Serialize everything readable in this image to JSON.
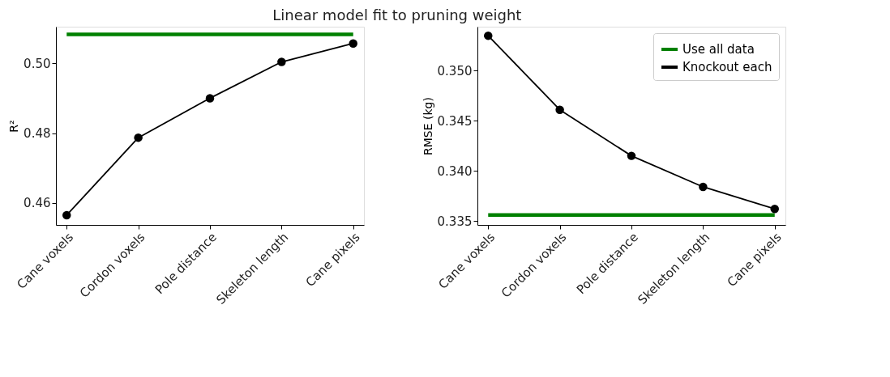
{
  "chart_data": [
    {
      "type": "line",
      "title": "Linear model fit to pruning weight",
      "ylabel": "R²",
      "categories": [
        "Cane voxels",
        "Cordon voxels",
        "Pole distance",
        "Skeleton length",
        "Cane pixels"
      ],
      "ylim": [
        0.4537,
        0.5105
      ],
      "yticks": [
        0.46,
        0.48,
        {
          "value": 0.5,
          "label": "0.50"
        }
      ],
      "grid": false,
      "legend": false,
      "series": [
        {
          "color": "#008000",
          "marker": "none",
          "values": [
            0.5083,
            0.5083,
            0.5083,
            0.5083,
            0.5083
          ]
        },
        {
          "color": "#000000",
          "marker": "circle",
          "values": [
            0.4565,
            0.4787,
            0.49,
            0.5004,
            0.5057
          ]
        }
      ]
    },
    {
      "type": "line",
      "ylabel": "RMSE (kg)",
      "categories": [
        "Cane voxels",
        "Cordon voxels",
        "Pole distance",
        "Skeleton length",
        "Cane pixels"
      ],
      "ylim": [
        0.3346,
        0.3544
      ],
      "yticks": [
        0.335,
        {
          "value": 0.34,
          "label": "0.340"
        },
        0.345,
        {
          "value": 0.35,
          "label": "0.350"
        }
      ],
      "grid": false,
      "legend": "top right",
      "series": [
        {
          "name": "Use all data",
          "color": "#008000",
          "marker": "none",
          "values": [
            0.3356,
            0.3356,
            0.3356,
            0.3356,
            0.3356
          ]
        },
        {
          "name": "Knockout each",
          "color": "#000000",
          "marker": "circle",
          "values": [
            0.3535,
            0.3461,
            0.3415,
            0.3384,
            0.3362
          ]
        }
      ]
    }
  ]
}
